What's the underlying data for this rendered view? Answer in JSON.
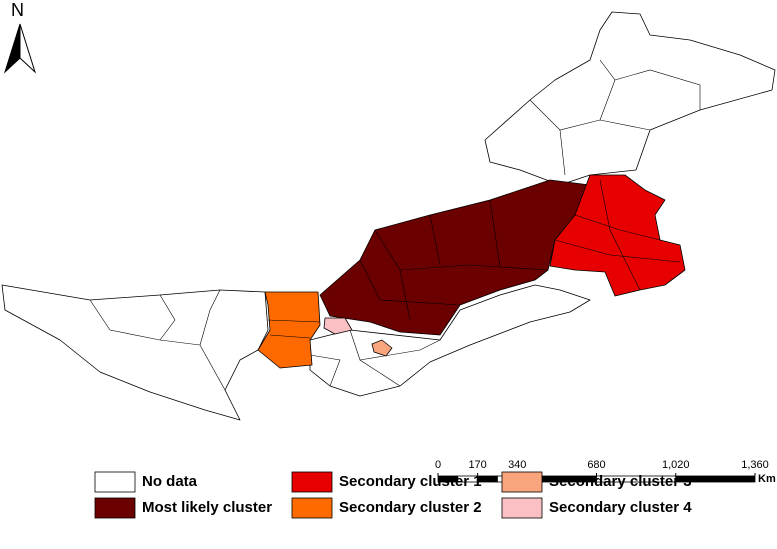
{
  "north_arrow": "N",
  "scale_bar": {
    "ticks": [
      0,
      170,
      340,
      680,
      {
        "value": 1020,
        "label": "1,020"
      },
      {
        "value": 1360,
        "label": "1,360"
      }
    ],
    "unit": "Km"
  },
  "legend": [
    {
      "label": "No data",
      "color": "#ffffff"
    },
    {
      "label": "Most likely cluster",
      "color": "#6b0000"
    },
    {
      "label": "Secondary cluster 1",
      "color": "#e60000"
    },
    {
      "label": "Secondary cluster 2",
      "color": "#ff6a00"
    },
    {
      "label": "Secondary cluster 3",
      "color": "#f9a47c"
    },
    {
      "label": "Secondary cluster 4",
      "color": "#fbc0c4"
    }
  ]
}
